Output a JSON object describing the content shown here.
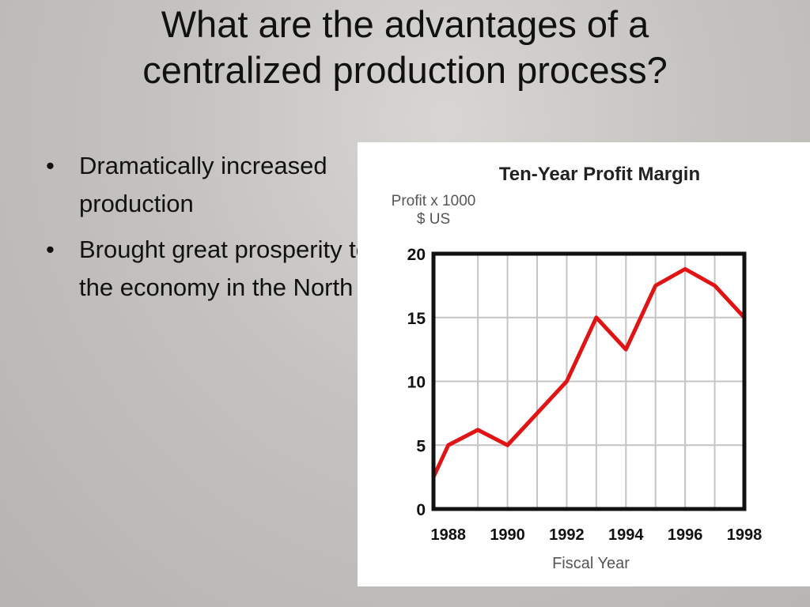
{
  "slide": {
    "title_line1": "What are the advantages of a",
    "title_line2": "centralized production process?",
    "bullets": [
      "Dramatically increased production",
      "Brought great prosperity to the economy in the North"
    ]
  },
  "chart_data": {
    "type": "line",
    "title": "Ten-Year Profit Margin",
    "ylabel_line1": "Profit x 1000",
    "ylabel_line2": "$ US",
    "xlabel": "Fiscal Year",
    "x": [
      1987.5,
      1988,
      1989,
      1990,
      1991,
      1992,
      1993,
      1994,
      1995,
      1996,
      1997,
      1998
    ],
    "series": [
      {
        "values": [
          2.5,
          5,
          6.2,
          5,
          7.5,
          10,
          15,
          12.5,
          17.5,
          18.8,
          17.5,
          15
        ],
        "color": "#e01414"
      }
    ],
    "xlim": [
      1987.5,
      1998
    ],
    "ylim": [
      0,
      20
    ],
    "x_ticks": [
      "1988",
      "1990",
      "1992",
      "1994",
      "1996",
      "1998"
    ],
    "x_tick_values": [
      1988,
      1990,
      1992,
      1994,
      1996,
      1998
    ],
    "y_ticks": [
      "0",
      "5",
      "10",
      "15",
      "20"
    ],
    "y_tick_values": [
      0,
      5,
      10,
      15,
      20
    ],
    "grid": true,
    "grid_x_values": [
      1989,
      1990,
      1991,
      1992,
      1993,
      1994,
      1995,
      1996,
      1997
    ],
    "grid_y_values": [
      5,
      10,
      15
    ]
  }
}
